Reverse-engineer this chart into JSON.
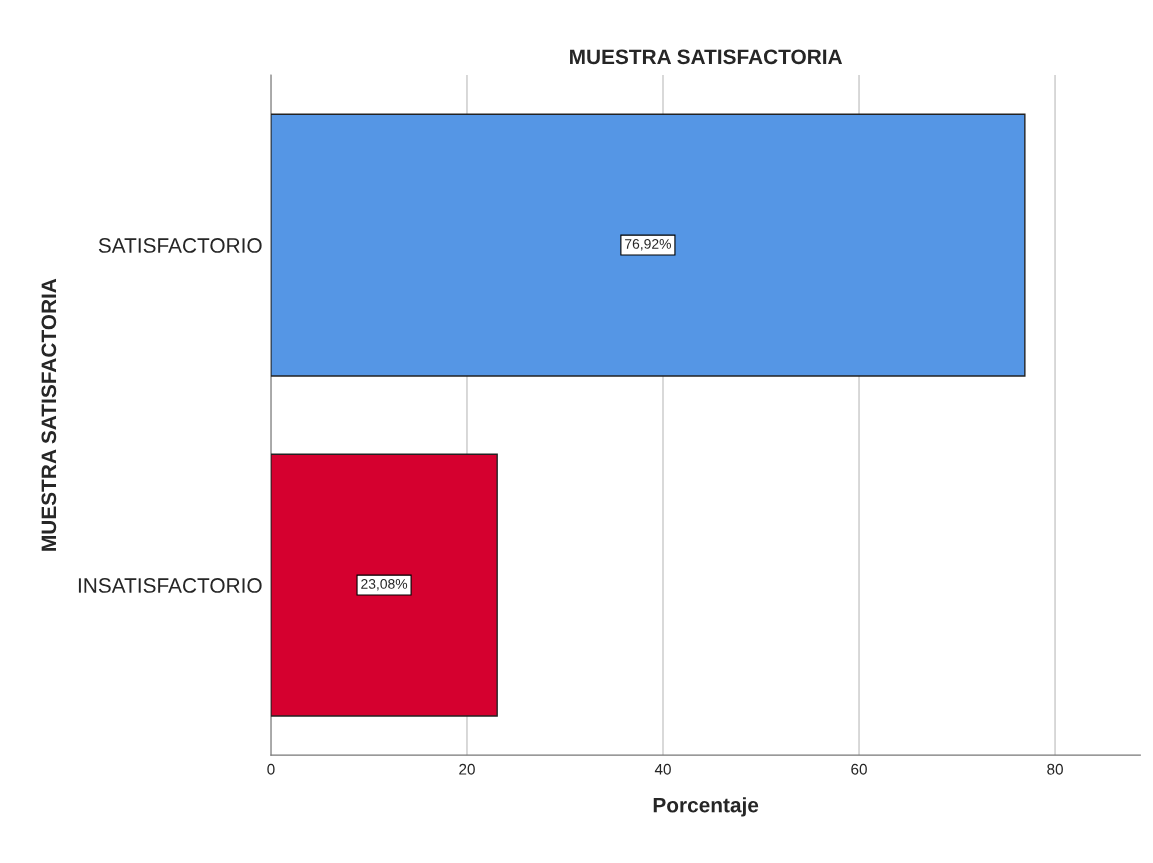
{
  "chart_data": {
    "type": "bar",
    "orientation": "horizontal",
    "title": "MUESTRA SATISFACTORIA",
    "xlabel": "Porcentaje",
    "ylabel": "MUESTRA SATISFACTORIA",
    "categories": [
      "SATISFACTORIO",
      "INSATISFACTORIO"
    ],
    "values": [
      76.92,
      23.08
    ],
    "colors": [
      "#5596e5",
      "#d5002f"
    ],
    "value_labels": [
      "76,92%",
      "23,08%"
    ],
    "xlim": [
      0,
      88.7
    ],
    "xticks": [
      0,
      20,
      40,
      60,
      80
    ],
    "grid": "x"
  }
}
